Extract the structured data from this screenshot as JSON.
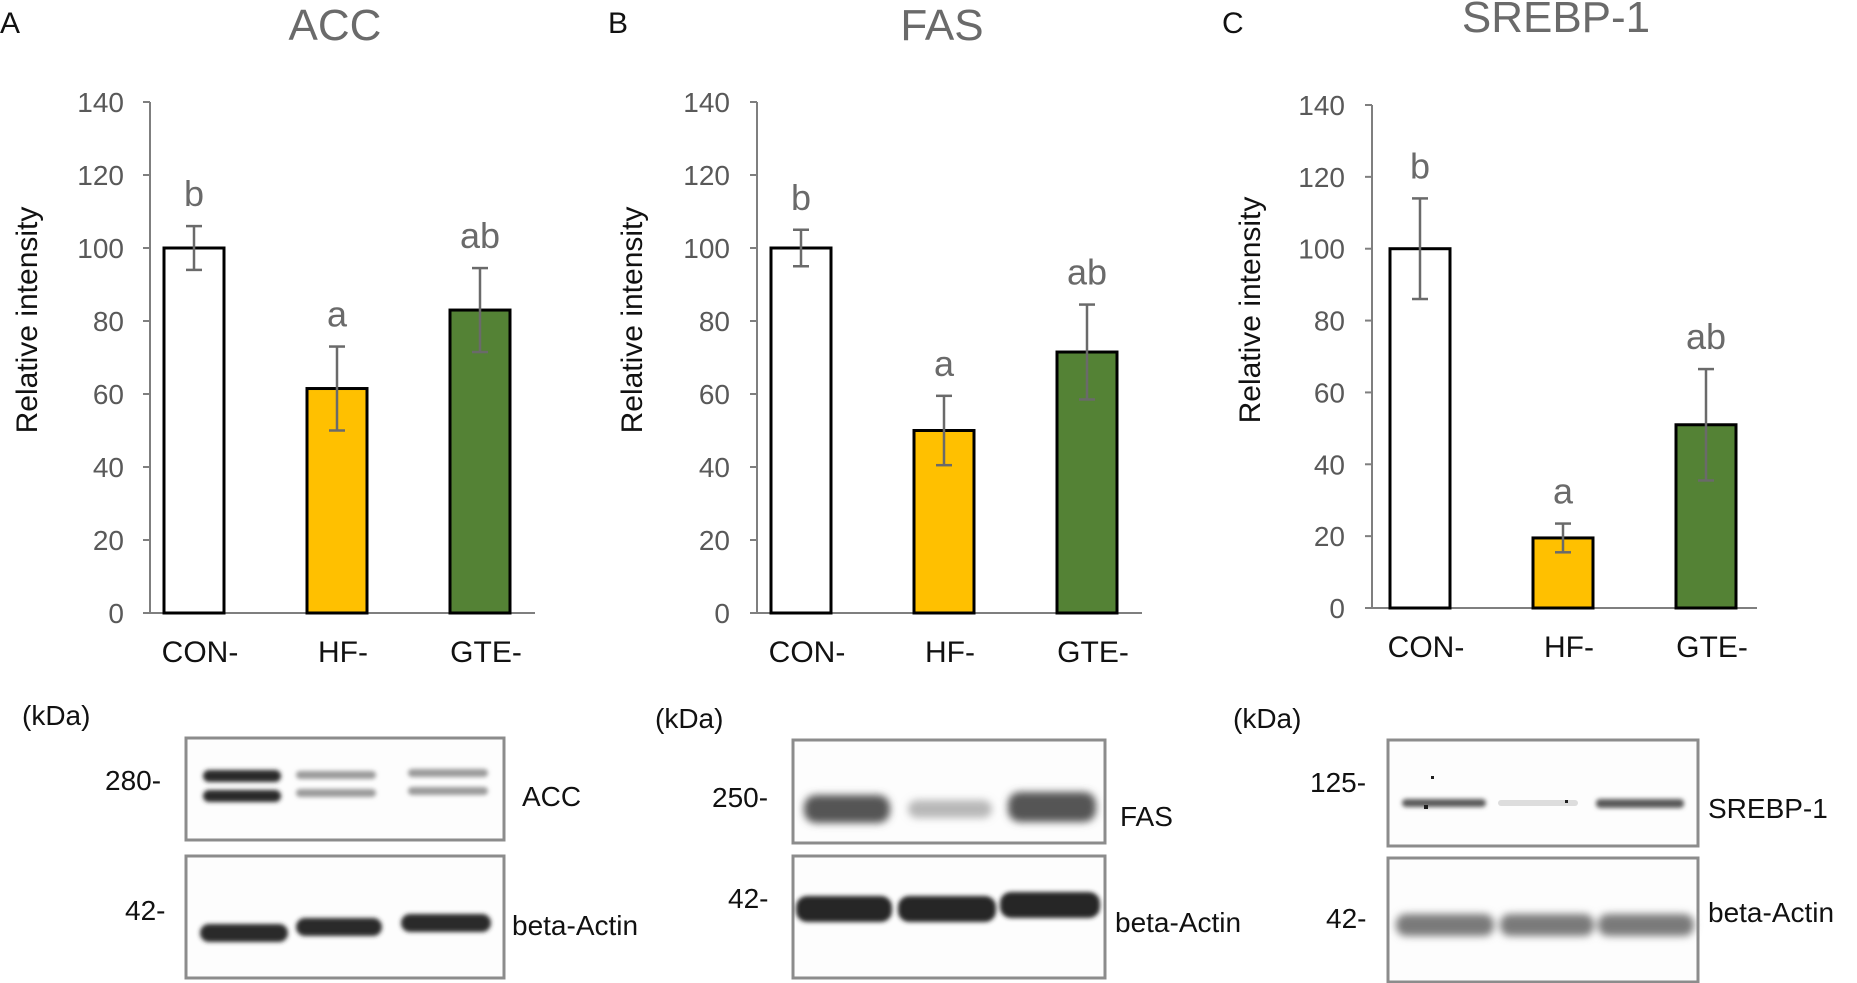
{
  "panels": [
    {
      "letter": "A",
      "blot": {
        "unit": "(kDa)",
        "top_marker": "280-",
        "top_protein": "ACC",
        "bottom_marker": "42-",
        "bottom_protein": "beta-Actin"
      }
    },
    {
      "letter": "B",
      "blot": {
        "unit": "(kDa)",
        "top_marker": "250-",
        "top_protein": "FAS",
        "bottom_marker": "42-",
        "bottom_protein": "beta-Actin"
      }
    },
    {
      "letter": "C",
      "blot": {
        "unit": "(kDa)",
        "top_marker": "125-",
        "top_protein": "SREBP-1",
        "bottom_marker": "42-",
        "bottom_protein": "beta-Actin"
      }
    }
  ],
  "colors": {
    "CON-": "#ffffff",
    "HF-": "#ffc000",
    "GTE-": "#548235",
    "bar_stroke": "#000000"
  },
  "chart_data": [
    {
      "type": "bar",
      "title": "ACC",
      "ylabel": "Relative intensity",
      "xlabel": "",
      "ylim": [
        0,
        140
      ],
      "yticks": [
        0,
        20,
        40,
        60,
        80,
        100,
        120,
        140
      ],
      "categories": [
        "CON-",
        "HF-",
        "GTE-"
      ],
      "values": [
        100,
        61.5,
        83
      ],
      "errors": [
        6,
        11.5,
        11.5
      ],
      "significance": [
        "b",
        "a",
        "ab"
      ],
      "grid": false
    },
    {
      "type": "bar",
      "title": "FAS",
      "ylabel": "Relative intensity",
      "xlabel": "",
      "ylim": [
        0,
        140
      ],
      "yticks": [
        0,
        20,
        40,
        60,
        80,
        100,
        120,
        140
      ],
      "categories": [
        "CON-",
        "HF-",
        "GTE-"
      ],
      "values": [
        100,
        50,
        71.5
      ],
      "errors": [
        5,
        9.5,
        13
      ],
      "significance": [
        "b",
        "a",
        "ab"
      ],
      "grid": false
    },
    {
      "type": "bar",
      "title": "SREBP-1",
      "ylabel": "Relative intensity",
      "xlabel": "",
      "ylim": [
        0,
        140
      ],
      "yticks": [
        0,
        20,
        40,
        60,
        80,
        100,
        120,
        140
      ],
      "categories": [
        "CON-",
        "HF-",
        "GTE-"
      ],
      "values": [
        100,
        19.5,
        51
      ],
      "errors": [
        14,
        4,
        15.5
      ],
      "significance": [
        "b",
        "a",
        "ab"
      ],
      "grid": false
    }
  ]
}
